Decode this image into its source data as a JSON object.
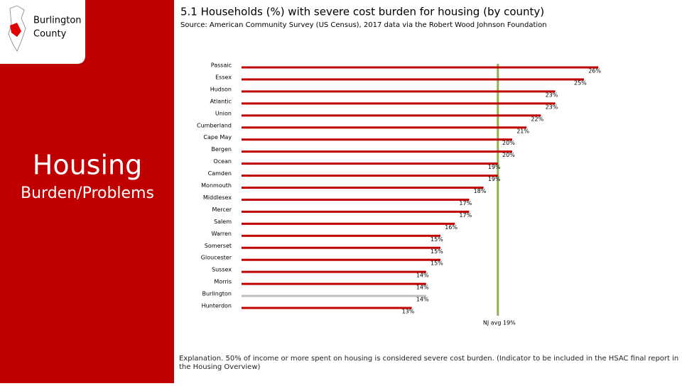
{
  "sidebar": {
    "county": [
      "Burlington",
      "County"
    ],
    "topic": [
      "Housing",
      "Burden/Problems"
    ]
  },
  "chart_data": {
    "type": "bar",
    "orientation": "horizontal",
    "title": "5.1 Households (%) with severe cost burden for housing (by county)",
    "subtitle": "Source: American Community Survey (US Census), 2017 data via the Robert Wood Johnson Foundation",
    "categories": [
      "Passaic",
      "Essex",
      "Hudson",
      "Atlantic",
      "Union",
      "Cumberland",
      "Cape May",
      "Bergen",
      "Ocean",
      "Camden",
      "Monmouth",
      "Middlesex",
      "Mercer",
      "Salem",
      "Warren",
      "Somerset",
      "Gloucester",
      "Sussex",
      "Morris",
      "Burlington",
      "Hunterdon"
    ],
    "values": [
      26,
      25,
      23,
      23,
      22,
      21,
      20,
      20,
      19,
      19,
      18,
      17,
      17,
      16,
      15,
      15,
      15,
      14,
      14,
      14,
      13
    ],
    "value_labels": [
      "26%",
      "25%",
      "23%",
      "23%",
      "22%",
      "21%",
      "20%",
      "20%",
      "19%",
      "19%",
      "18%",
      "17%",
      "17%",
      "16%",
      "15%",
      "15%",
      "15%",
      "14%",
      "14%",
      "14%",
      "13%"
    ],
    "colors": [
      "#c00000",
      "#c00000",
      "#c00000",
      "#c00000",
      "#c00000",
      "#c00000",
      "#c00000",
      "#c00000",
      "#c00000",
      "#c00000",
      "#c00000",
      "#c00000",
      "#c00000",
      "#c00000",
      "#c00000",
      "#c00000",
      "#c00000",
      "#c00000",
      "#c00000",
      "#bfbfbf",
      "#c00000"
    ],
    "reference_line": {
      "value": 19,
      "label": "NJ avg 19%",
      "color": "#92b050"
    }
  },
  "explanation": "Explanation. 50% of income or more spent on housing is considered severe cost burden. (Indicator to be included in the HSAC final report in the Housing Overview)"
}
